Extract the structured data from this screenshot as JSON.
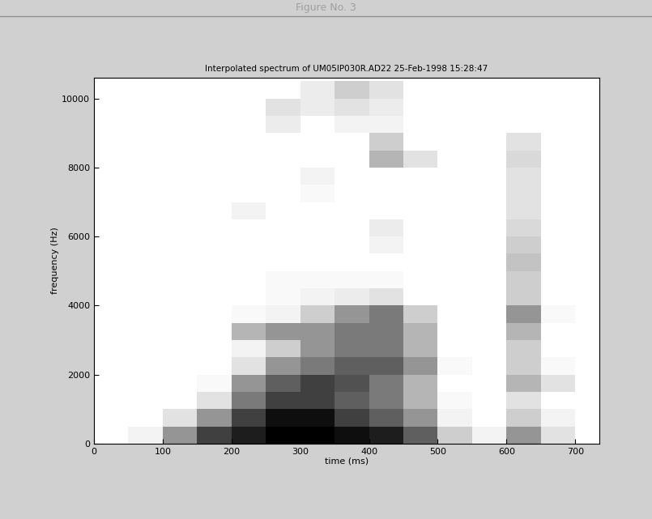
{
  "chart_data": {
    "type": "heatmap",
    "window_title": "Figure No. 3",
    "title": "Interpolated spectrum of UM05IP030R.AD22 25-Feb-1998 15:28:47",
    "x_label": "time (ms)",
    "y_label": "frequency (Hz)",
    "xlim": [
      0,
      735
    ],
    "ylim": [
      0,
      10600
    ],
    "xticks": [
      0,
      100,
      200,
      300,
      400,
      500,
      600,
      700
    ],
    "yticks": [
      0,
      2000,
      4000,
      6000,
      8000,
      10000
    ],
    "x_edges": [
      0,
      50,
      100,
      150,
      200,
      250,
      300,
      350,
      400,
      450,
      500,
      550,
      600,
      650,
      700,
      750
    ],
    "y_edges": [
      0,
      500,
      1000,
      1500,
      2000,
      2500,
      3000,
      3500,
      4000,
      4500,
      5000,
      5500,
      6000,
      6500,
      7000,
      7500,
      8000,
      8500,
      9000,
      9500,
      10000,
      10500,
      11000
    ],
    "cells": [
      [
        0,
        0.1,
        0.5,
        0.8,
        0.9,
        1,
        1,
        0.95,
        0.9,
        0.7,
        0.3,
        0.1,
        0.5,
        0.2,
        0
      ],
      [
        0,
        0,
        0.2,
        0.5,
        0.8,
        0.95,
        0.95,
        0.8,
        0.7,
        0.5,
        0.1,
        0,
        0.3,
        0.1,
        0
      ],
      [
        0,
        0,
        0,
        0.2,
        0.6,
        0.8,
        0.8,
        0.7,
        0.6,
        0.4,
        0.05,
        0,
        0.2,
        0,
        0
      ],
      [
        0,
        0,
        0,
        0.05,
        0.5,
        0.7,
        0.8,
        0.75,
        0.6,
        0.4,
        0,
        0,
        0.4,
        0.2,
        0
      ],
      [
        0,
        0,
        0,
        0,
        0.2,
        0.5,
        0.6,
        0.7,
        0.7,
        0.5,
        0.05,
        0,
        0.3,
        0.05,
        0
      ],
      [
        0,
        0,
        0,
        0,
        0.1,
        0.3,
        0.5,
        0.6,
        0.6,
        0.4,
        0,
        0,
        0.3,
        0,
        0
      ],
      [
        0,
        0,
        0,
        0,
        0.4,
        0.5,
        0.5,
        0.6,
        0.6,
        0.4,
        0,
        0,
        0.4,
        0,
        0
      ],
      [
        0,
        0,
        0,
        0,
        0.05,
        0.1,
        0.3,
        0.5,
        0.6,
        0.3,
        0,
        0,
        0.5,
        0.05,
        0
      ],
      [
        0,
        0,
        0,
        0,
        0,
        0.05,
        0.1,
        0.15,
        0.2,
        0,
        0,
        0,
        0.3,
        0,
        0
      ],
      [
        0,
        0,
        0,
        0,
        0,
        0.05,
        0.05,
        0.05,
        0.05,
        0,
        0,
        0,
        0.3,
        0,
        0
      ],
      [
        0,
        0,
        0,
        0,
        0,
        0,
        0,
        0,
        0,
        0,
        0,
        0,
        0.35,
        0,
        0
      ],
      [
        0,
        0,
        0,
        0,
        0,
        0,
        0,
        0,
        0.1,
        0,
        0,
        0,
        0.3,
        0,
        0
      ],
      [
        0,
        0,
        0,
        0,
        0,
        0,
        0,
        0,
        0.15,
        0,
        0,
        0,
        0.25,
        0,
        0
      ],
      [
        0,
        0,
        0,
        0,
        0.1,
        0,
        0,
        0,
        0,
        0,
        0,
        0,
        0.2,
        0,
        0
      ],
      [
        0,
        0,
        0,
        0,
        0,
        0,
        0.05,
        0,
        0,
        0,
        0,
        0,
        0.2,
        0,
        0
      ],
      [
        0,
        0,
        0,
        0,
        0,
        0,
        0.1,
        0,
        0,
        0,
        0,
        0,
        0.2,
        0,
        0
      ],
      [
        0,
        0,
        0,
        0,
        0,
        0,
        0,
        0,
        0.4,
        0.2,
        0,
        0,
        0.25,
        0,
        0
      ],
      [
        0,
        0,
        0,
        0,
        0,
        0,
        0,
        0,
        0.3,
        0,
        0,
        0,
        0.2,
        0,
        0
      ],
      [
        0,
        0,
        0,
        0,
        0,
        0.15,
        0,
        0.1,
        0.1,
        0,
        0,
        0,
        0,
        0,
        0
      ],
      [
        0,
        0,
        0,
        0,
        0,
        0.2,
        0.15,
        0.2,
        0.15,
        0,
        0,
        0,
        0,
        0,
        0
      ],
      [
        0,
        0,
        0,
        0,
        0,
        0,
        0.15,
        0.3,
        0.2,
        0,
        0,
        0,
        0,
        0,
        0
      ],
      [
        0,
        0,
        0,
        0,
        0,
        0,
        0,
        0,
        0,
        0,
        0,
        0,
        0,
        0,
        0
      ]
    ]
  }
}
